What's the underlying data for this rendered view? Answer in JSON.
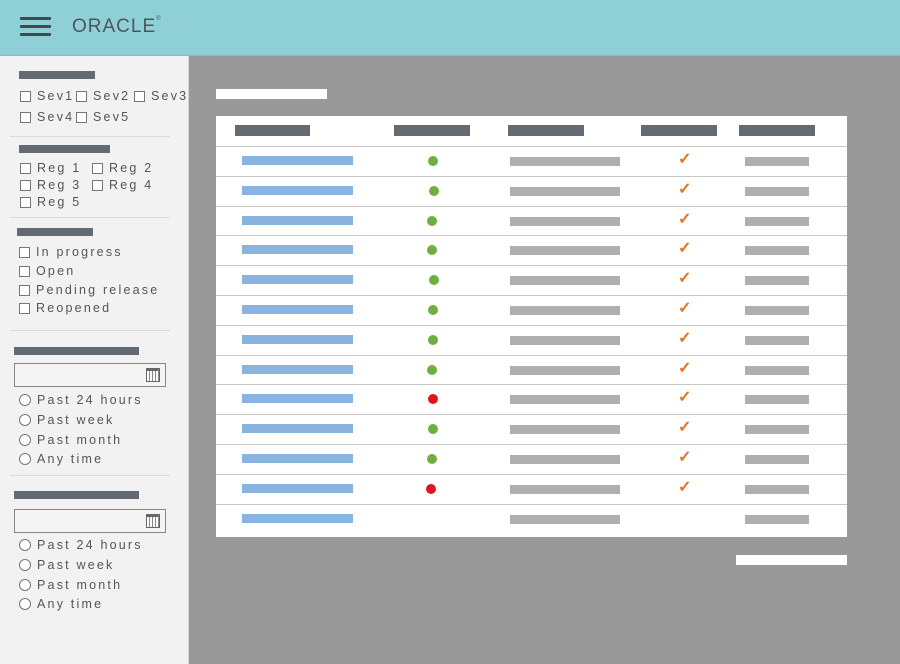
{
  "header": {
    "logo_text": "ORACLE",
    "logo_mark": "®",
    "menu_icon": "hamburger-icon"
  },
  "filters": {
    "severity": {
      "options": [
        "Sev1",
        "Sev2",
        "Sev3",
        "Sev4",
        "Sev5"
      ]
    },
    "region": {
      "options": [
        "Reg 1",
        "Reg 2",
        "Reg 3",
        "Reg 4",
        "Reg 5"
      ]
    },
    "status": {
      "options": [
        "In progress",
        "Open",
        "Pending release",
        "Reopened"
      ]
    },
    "date1": {
      "calendar_icon": "calendar-icon",
      "options": [
        "Past 24 hours",
        "Past week",
        "Past month",
        "Any time"
      ]
    },
    "date2": {
      "calendar_icon": "calendar-icon",
      "options": [
        "Past 24 hours",
        "Past week",
        "Past month",
        "Any time"
      ]
    }
  },
  "table": {
    "colors": {
      "ok": "#6fae3f",
      "error": "#e0141e",
      "check": "#e8731f"
    },
    "rows": [
      {
        "status": "ok",
        "checked": true
      },
      {
        "status": "ok",
        "checked": true
      },
      {
        "status": "ok",
        "checked": true
      },
      {
        "status": "ok",
        "checked": true
      },
      {
        "status": "ok",
        "checked": true
      },
      {
        "status": "ok",
        "checked": true
      },
      {
        "status": "ok",
        "checked": true
      },
      {
        "status": "ok",
        "checked": true
      },
      {
        "status": "error",
        "checked": true
      },
      {
        "status": "ok",
        "checked": true
      },
      {
        "status": "ok",
        "checked": true
      },
      {
        "status": "error",
        "checked": true
      },
      {
        "status": "none",
        "checked": false
      }
    ]
  }
}
